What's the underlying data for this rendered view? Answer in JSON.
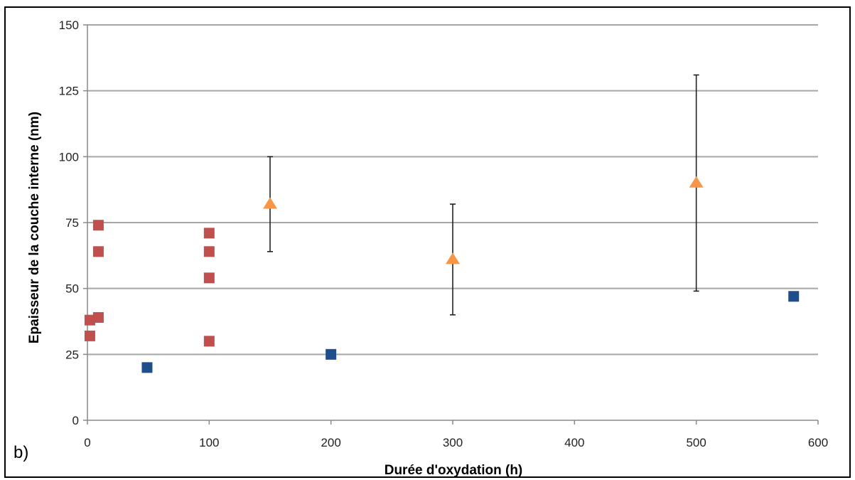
{
  "chart_data": {
    "type": "scatter",
    "panel_label": "b)",
    "xlabel": "Durée d'oxydation (h)",
    "ylabel": "Epaisseur  de la couche interne (nm)",
    "xlim": [
      0,
      600
    ],
    "ylim": [
      0,
      150
    ],
    "x_ticks": [
      "0",
      "100",
      "200",
      "300",
      "400",
      "500",
      "600"
    ],
    "y_ticks": [
      "0",
      "25",
      "50",
      "75",
      "100",
      "125",
      "150"
    ],
    "grid": "horizontal",
    "legend": "none",
    "series": [
      {
        "marker": "square",
        "color": "#c0504d",
        "points": [
          {
            "x": 2,
            "y": 38
          },
          {
            "x": 2,
            "y": 32
          },
          {
            "x": 9,
            "y": 39
          },
          {
            "x": 9,
            "y": 64
          },
          {
            "x": 9,
            "y": 74
          },
          {
            "x": 100,
            "y": 30
          },
          {
            "x": 100,
            "y": 54
          },
          {
            "x": 100,
            "y": 64
          },
          {
            "x": 100,
            "y": 71
          }
        ]
      },
      {
        "marker": "square",
        "color": "#1f4e8c",
        "points": [
          {
            "x": 49,
            "y": 20
          },
          {
            "x": 200,
            "y": 25
          },
          {
            "x": 580,
            "y": 47
          }
        ]
      },
      {
        "marker": "triangle",
        "color": "#f79646",
        "points": [
          {
            "x": 150,
            "y": 82,
            "err_low": 64,
            "err_high": 100
          },
          {
            "x": 300,
            "y": 61,
            "err_low": 40,
            "err_high": 82
          },
          {
            "x": 500,
            "y": 90,
            "err_low": 49,
            "err_high": 131
          }
        ]
      }
    ]
  }
}
